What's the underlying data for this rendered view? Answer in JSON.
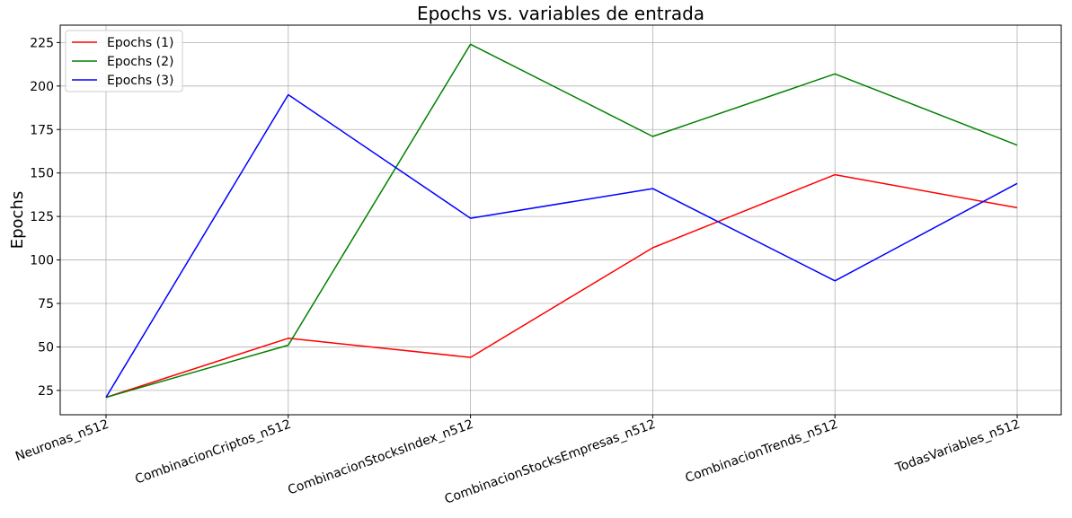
{
  "chart_data": {
    "type": "line",
    "title": "Epochs vs. variables de entrada",
    "xlabel": "",
    "ylabel": "Epochs",
    "categories": [
      "Neuronas_n512",
      "CombinacionCriptos_n512",
      "CombinacionStocksIndex_n512",
      "CombinacionStocksEmpresas_n512",
      "CombinacionTrends_n512",
      "TodasVariables_n512"
    ],
    "series": [
      {
        "name": "Epochs (1)",
        "color": "#ff0000",
        "values": [
          21,
          55,
          44,
          107,
          149,
          130
        ]
      },
      {
        "name": "Epochs (2)",
        "color": "#008000",
        "values": [
          21,
          51,
          224,
          171,
          207,
          166
        ]
      },
      {
        "name": "Epochs (3)",
        "color": "#0000ff",
        "values": [
          21,
          195,
          124,
          141,
          88,
          144
        ]
      }
    ],
    "ylim": [
      11,
      235
    ],
    "yticks": [
      25,
      50,
      75,
      100,
      125,
      150,
      175,
      200,
      225
    ],
    "grid": true,
    "legend_position": "top-left"
  }
}
